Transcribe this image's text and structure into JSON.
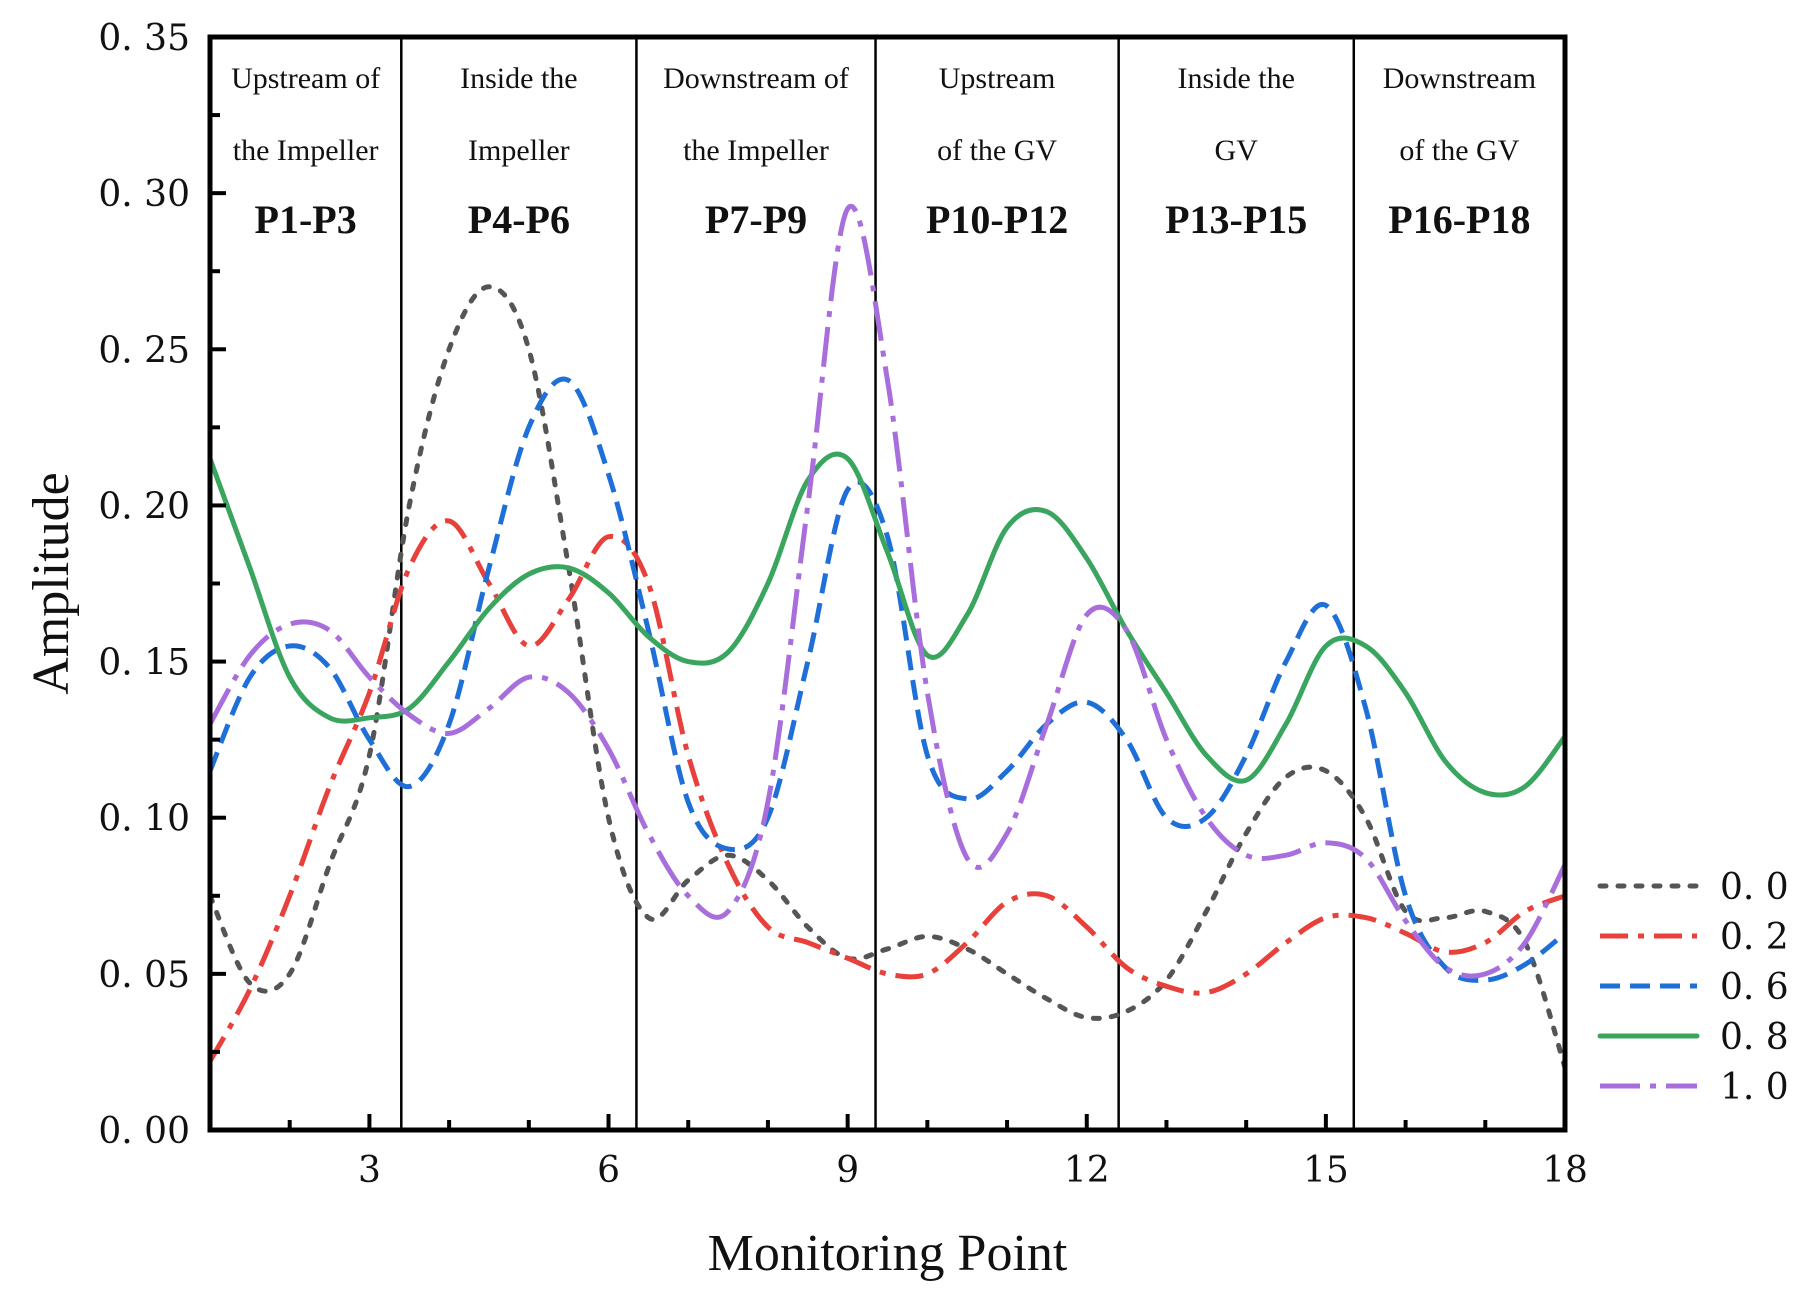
{
  "chart_data": {
    "type": "line",
    "title": "",
    "xlabel": "Monitoring Point",
    "ylabel": "Amplitude",
    "xlim": [
      1,
      18
    ],
    "ylim": [
      0,
      0.35
    ],
    "x_ticks": [
      3,
      6,
      9,
      12,
      15,
      18
    ],
    "y_ticks": [
      0.0,
      0.05,
      0.1,
      0.15,
      0.2,
      0.25,
      0.3,
      0.35
    ],
    "y_tick_labels": [
      "0. 00",
      "0. 05",
      "0. 10",
      "0. 15",
      "0. 20",
      "0. 25",
      "0. 30",
      "0. 35"
    ],
    "legend_position": "right-bottom, outside",
    "region_dividers": [
      3.4,
      6.35,
      9.35,
      12.4,
      15.35
    ],
    "regions": [
      {
        "line1": "Upstream of",
        "line2": "the Impeller",
        "range": "P1-P3"
      },
      {
        "line1": "Inside the",
        "line2": "Impeller",
        "range": "P4-P6"
      },
      {
        "line1": "Downstream of",
        "line2": "the Impeller",
        "range": "P7-P9"
      },
      {
        "line1": "Upstream",
        "line2": "of the GV",
        "range": "P10-P12"
      },
      {
        "line1": "Inside the",
        "line2": "GV",
        "range": "P13-P15"
      },
      {
        "line1": "Downstream",
        "line2": "of the GV",
        "range": "P16-P18"
      }
    ],
    "x": [
      1,
      1.5,
      2,
      2.5,
      3,
      3.5,
      4,
      4.5,
      5,
      5.5,
      6,
      6.5,
      7,
      7.5,
      8,
      8.5,
      9,
      9.5,
      10,
      10.5,
      11,
      11.5,
      12,
      12.5,
      13,
      13.5,
      14,
      14.5,
      15,
      15.5,
      16,
      16.5,
      17,
      17.5,
      18
    ],
    "series": [
      {
        "name": "0. 0",
        "color": "#555555",
        "dash": "dot",
        "values": [
          0.075,
          0.047,
          0.05,
          0.085,
          0.12,
          0.2,
          0.25,
          0.27,
          0.25,
          0.18,
          0.1,
          0.068,
          0.08,
          0.088,
          0.08,
          0.065,
          0.055,
          0.058,
          0.062,
          0.058,
          0.05,
          0.042,
          0.036,
          0.038,
          0.048,
          0.07,
          0.095,
          0.113,
          0.115,
          0.1,
          0.07,
          0.068,
          0.07,
          0.06,
          0.02
        ]
      },
      {
        "name": "0. 2",
        "color": "#e8413c",
        "dash": "dashdot",
        "values": [
          0.022,
          0.045,
          0.075,
          0.11,
          0.14,
          0.18,
          0.195,
          0.175,
          0.155,
          0.17,
          0.19,
          0.175,
          0.12,
          0.085,
          0.065,
          0.06,
          0.055,
          0.05,
          0.05,
          0.06,
          0.073,
          0.075,
          0.065,
          0.052,
          0.046,
          0.044,
          0.05,
          0.06,
          0.068,
          0.068,
          0.063,
          0.057,
          0.06,
          0.07,
          0.075
        ]
      },
      {
        "name": "0. 6",
        "color": "#1f6fd8",
        "dash": "dash",
        "values": [
          0.115,
          0.145,
          0.155,
          0.148,
          0.125,
          0.11,
          0.13,
          0.18,
          0.225,
          0.24,
          0.21,
          0.16,
          0.105,
          0.09,
          0.1,
          0.15,
          0.205,
          0.19,
          0.12,
          0.106,
          0.115,
          0.13,
          0.137,
          0.125,
          0.1,
          0.1,
          0.12,
          0.15,
          0.168,
          0.135,
          0.075,
          0.052,
          0.048,
          0.053,
          0.063
        ]
      },
      {
        "name": "0. 8",
        "color": "#3aa55e",
        "dash": "solid",
        "values": [
          0.215,
          0.18,
          0.145,
          0.132,
          0.132,
          0.135,
          0.15,
          0.167,
          0.178,
          0.18,
          0.172,
          0.158,
          0.15,
          0.153,
          0.175,
          0.208,
          0.215,
          0.185,
          0.152,
          0.165,
          0.193,
          0.198,
          0.183,
          0.16,
          0.14,
          0.12,
          0.112,
          0.13,
          0.155,
          0.155,
          0.14,
          0.118,
          0.108,
          0.11,
          0.126
        ]
      },
      {
        "name": "1. 0",
        "color": "#a86fdc",
        "dash": "longdashdot",
        "values": [
          0.13,
          0.152,
          0.162,
          0.16,
          0.145,
          0.133,
          0.127,
          0.135,
          0.145,
          0.14,
          0.122,
          0.095,
          0.075,
          0.07,
          0.105,
          0.2,
          0.295,
          0.24,
          0.14,
          0.087,
          0.095,
          0.13,
          0.165,
          0.16,
          0.125,
          0.1,
          0.088,
          0.088,
          0.092,
          0.087,
          0.067,
          0.052,
          0.05,
          0.06,
          0.085
        ]
      }
    ]
  }
}
